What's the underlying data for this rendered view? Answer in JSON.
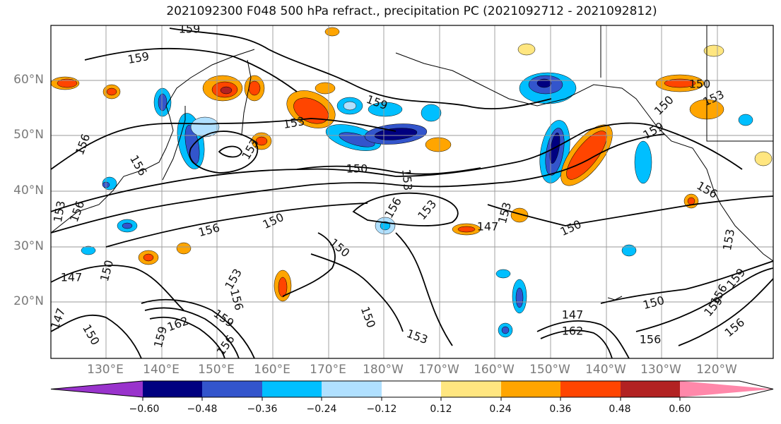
{
  "title": "2021092300 F048 500 hPa refract., precipitation PC (2021092712 - 2021092812)",
  "map": {
    "lat_labels": [
      "60°N",
      "50°N",
      "40°N",
      "30°N",
      "20°N"
    ],
    "lon_labels": [
      "130°E",
      "140°E",
      "150°E",
      "160°E",
      "170°E",
      "180°W",
      "170°W",
      "160°W",
      "150°W",
      "140°W",
      "130°W",
      "120°W"
    ],
    "contour_labels": [
      {
        "text": "159"
      },
      {
        "text": "159"
      },
      {
        "text": "159"
      },
      {
        "text": "153"
      },
      {
        "text": "156"
      },
      {
        "text": "153"
      },
      {
        "text": "156"
      },
      {
        "text": "150"
      },
      {
        "text": "153"
      },
      {
        "text": "156"
      },
      {
        "text": "150"
      },
      {
        "text": "153"
      },
      {
        "text": "156"
      },
      {
        "text": "147"
      },
      {
        "text": "153"
      },
      {
        "text": "150"
      },
      {
        "text": "147"
      },
      {
        "text": "150"
      },
      {
        "text": "156"
      },
      {
        "text": "159"
      },
      {
        "text": "150"
      },
      {
        "text": "147"
      },
      {
        "text": "150"
      },
      {
        "text": "153"
      },
      {
        "text": "156"
      },
      {
        "text": "162"
      },
      {
        "text": "159"
      },
      {
        "text": "156"
      },
      {
        "text": "153"
      },
      {
        "text": "150"
      },
      {
        "text": "147"
      },
      {
        "text": "162"
      },
      {
        "text": "153"
      },
      {
        "text": "150"
      },
      {
        "text": "159"
      },
      {
        "text": "156"
      },
      {
        "text": "156"
      },
      {
        "text": "153"
      },
      {
        "text": "159"
      },
      {
        "text": "156"
      },
      {
        "text": "153"
      },
      {
        "text": "150"
      },
      {
        "text": "156"
      },
      {
        "text": "159"
      },
      {
        "text": "150"
      }
    ]
  },
  "colorbar": {
    "tick_labels": [
      "−0.60",
      "−0.48",
      "−0.36",
      "−0.24",
      "−0.12",
      "0.12",
      "0.24",
      "0.36",
      "0.48",
      "0.60"
    ],
    "colors": [
      "#9933cc",
      "#000080",
      "#3355cc",
      "#00bfff",
      "#b0e0ff",
      "#ffffff",
      "#ffe680",
      "#ffa500",
      "#ff4500",
      "#b22222",
      "#ff88aa"
    ]
  }
}
